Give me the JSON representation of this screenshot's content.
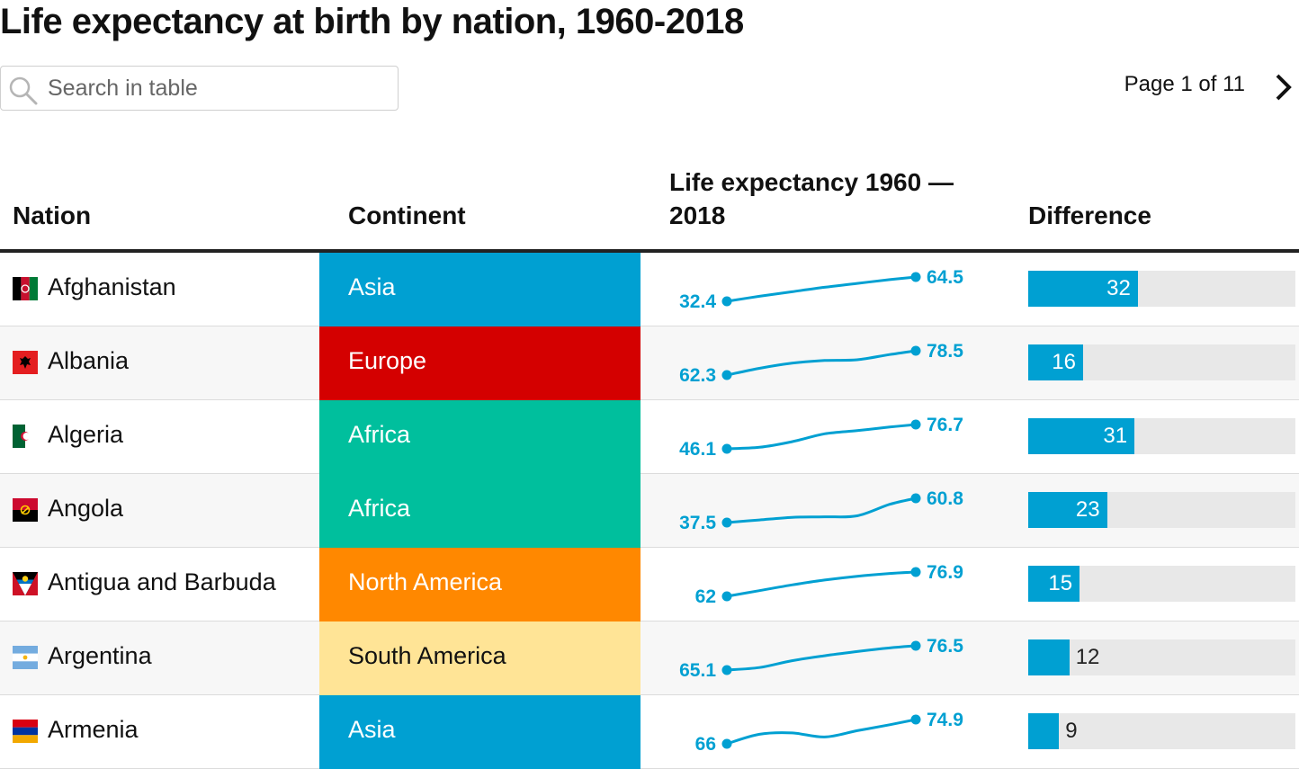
{
  "title": "Life expectancy at birth by nation, 1960-2018",
  "search": {
    "placeholder": "Search in table",
    "value": ""
  },
  "pager": {
    "text": "Page 1 of 11"
  },
  "icons": {
    "search": "search-icon",
    "next": "chevron-right-icon"
  },
  "colors": {
    "accent": "#00a0d2",
    "Asia": "#00a0d2",
    "Europe": "#d40000",
    "Africa": "#00bf9d",
    "North America": "#ff8800",
    "South America": "#ffe496"
  },
  "columns": {
    "nation": "Nation",
    "continent": "Continent",
    "life_line1": "Life expectancy 1960 —",
    "life_line2": "2018",
    "difference": "Difference"
  },
  "chart_data": {
    "type": "table",
    "difference_scale_max": 78,
    "rows": [
      {
        "nation": "Afghanistan",
        "continent": "Asia",
        "start": "32.4",
        "end": "64.5",
        "difference": 32,
        "trend": [
          [
            1960,
            32.4
          ],
          [
            1970,
            39
          ],
          [
            1980,
            45
          ],
          [
            1990,
            51
          ],
          [
            2000,
            56
          ],
          [
            2010,
            61
          ],
          [
            2018,
            64.5
          ]
        ]
      },
      {
        "nation": "Albania",
        "continent": "Europe",
        "start": "62.3",
        "end": "78.5",
        "difference": 16,
        "trend": [
          [
            1960,
            62.3
          ],
          [
            1970,
            66.8
          ],
          [
            1980,
            70.2
          ],
          [
            1990,
            72
          ],
          [
            2000,
            72.5
          ],
          [
            2010,
            76
          ],
          [
            2018,
            78.5
          ]
        ]
      },
      {
        "nation": "Algeria",
        "continent": "Africa",
        "start": "46.1",
        "end": "76.7",
        "difference": 31,
        "trend": [
          [
            1960,
            46.1
          ],
          [
            1970,
            48
          ],
          [
            1980,
            55
          ],
          [
            1990,
            65
          ],
          [
            2000,
            69
          ],
          [
            2010,
            73.5
          ],
          [
            2018,
            76.7
          ]
        ]
      },
      {
        "nation": "Angola",
        "continent": "Africa",
        "start": "37.5",
        "end": "60.8",
        "difference": 23,
        "trend": [
          [
            1960,
            37.5
          ],
          [
            1970,
            40
          ],
          [
            1980,
            42.5
          ],
          [
            1990,
            43
          ],
          [
            2000,
            44
          ],
          [
            2010,
            55
          ],
          [
            2018,
            60.8
          ]
        ]
      },
      {
        "nation": "Antigua and Barbuda",
        "continent": "North America",
        "start": "62",
        "end": "76.9",
        "difference": 15,
        "trend": [
          [
            1960,
            62
          ],
          [
            1970,
            65.5
          ],
          [
            1980,
            69
          ],
          [
            1990,
            72
          ],
          [
            2000,
            74.3
          ],
          [
            2010,
            76
          ],
          [
            2018,
            76.9
          ]
        ]
      },
      {
        "nation": "Argentina",
        "continent": "South America",
        "start": "65.1",
        "end": "76.5",
        "difference": 12,
        "trend": [
          [
            1960,
            65.1
          ],
          [
            1970,
            66.3
          ],
          [
            1980,
            69.5
          ],
          [
            1990,
            71.8
          ],
          [
            2000,
            73.8
          ],
          [
            2010,
            75.5
          ],
          [
            2018,
            76.5
          ]
        ]
      },
      {
        "nation": "Armenia",
        "continent": "Asia",
        "start": "66",
        "end": "74.9",
        "difference": 9,
        "trend": [
          [
            1960,
            66
          ],
          [
            1970,
            69.5
          ],
          [
            1980,
            70
          ],
          [
            1990,
            68.5
          ],
          [
            2000,
            70.8
          ],
          [
            2010,
            73
          ],
          [
            2018,
            74.9
          ]
        ]
      }
    ]
  }
}
